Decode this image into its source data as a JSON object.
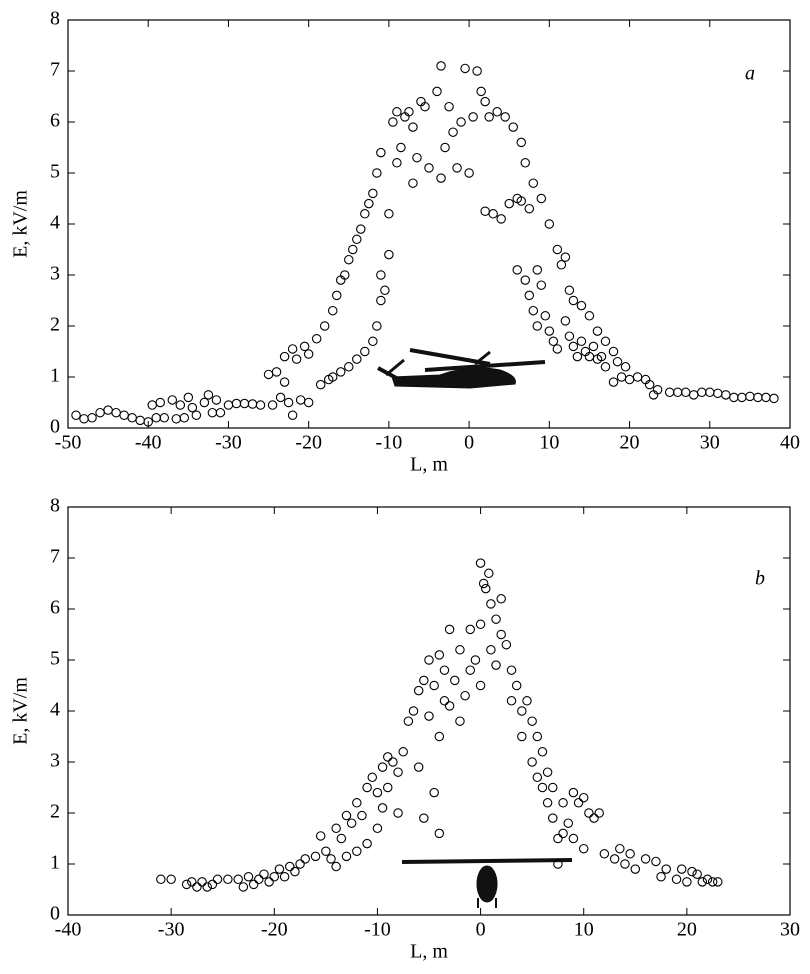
{
  "chart_data": [
    {
      "type": "scatter",
      "annotation": "a",
      "xlabel": "L, m",
      "ylabel": "E, kV/m",
      "color": "#000000",
      "xlim": [
        -50,
        40
      ],
      "ylim": [
        0,
        8
      ],
      "xticks": [
        -50,
        -40,
        -30,
        -20,
        -10,
        0,
        10,
        20,
        30,
        40
      ],
      "yticks": [
        0,
        1,
        2,
        3,
        4,
        5,
        6,
        7,
        8
      ],
      "x": [
        -49,
        -48,
        -47,
        -46,
        -45,
        -44,
        -43,
        -42,
        -41,
        -40,
        -39.5,
        -39,
        -38.5,
        -38,
        -37,
        -36.5,
        -36,
        -35.5,
        -35,
        -34.5,
        -34,
        -33,
        -32.5,
        -32,
        -31.5,
        -31,
        -30,
        -29,
        -28,
        -27,
        -26,
        -25,
        -24.5,
        -24,
        -23.5,
        -23,
        -23,
        -22.5,
        -22,
        -22,
        -21.5,
        -21,
        -20.5,
        -20,
        -20,
        -19,
        -18.5,
        -18,
        -17.5,
        -17,
        -17,
        -16.5,
        -16,
        -16,
        -15.5,
        -15,
        -15,
        -14.5,
        -14,
        -14,
        -13.5,
        -13,
        -13,
        -12.5,
        -12,
        -12,
        -11.5,
        -11.5,
        -11,
        -11,
        -11,
        -10.5,
        -10,
        -10,
        -9.5,
        -9,
        -9,
        -8.5,
        -8,
        -7.5,
        -7,
        -7,
        -6.5,
        -6,
        -5.5,
        -5,
        -4,
        -3.5,
        -3.5,
        -3,
        -2.5,
        -2,
        -1.5,
        -1,
        -0.5,
        0,
        0.5,
        1,
        1.5,
        2,
        2,
        2.5,
        3,
        3.5,
        4,
        4.5,
        5,
        5.5,
        6,
        6,
        6.5,
        6.5,
        7,
        7,
        7.5,
        7.5,
        8,
        8,
        8.5,
        8.5,
        9,
        9,
        9.5,
        10,
        10,
        10.5,
        11,
        11,
        11.5,
        12,
        12,
        12.5,
        12.5,
        13,
        13,
        13.5,
        14,
        14,
        14.5,
        15,
        15,
        15.5,
        16,
        16,
        16.5,
        17,
        17,
        18,
        18,
        18.5,
        19,
        19.5,
        20,
        21,
        22,
        22.5,
        23,
        23.5,
        25,
        26,
        27,
        28,
        29,
        30,
        31,
        32,
        33,
        34,
        35,
        36,
        37,
        38
      ],
      "values": [
        0.25,
        0.18,
        0.2,
        0.3,
        0.35,
        0.3,
        0.25,
        0.2,
        0.15,
        0.12,
        0.45,
        0.2,
        0.5,
        0.2,
        0.55,
        0.18,
        0.45,
        0.2,
        0.6,
        0.4,
        0.25,
        0.5,
        0.65,
        0.3,
        0.55,
        0.3,
        0.45,
        0.48,
        0.48,
        0.47,
        0.45,
        1.05,
        0.45,
        1.1,
        0.6,
        1.4,
        0.9,
        0.5,
        0.25,
        1.55,
        1.35,
        0.55,
        1.6,
        1.45,
        0.5,
        1.75,
        0.85,
        2.0,
        0.95,
        2.3,
        1.0,
        2.6,
        1.1,
        2.9,
        3.0,
        3.3,
        1.2,
        3.5,
        3.7,
        1.35,
        3.9,
        4.2,
        1.5,
        4.4,
        4.6,
        1.7,
        5.0,
        2.0,
        5.4,
        2.5,
        3.0,
        2.7,
        3.4,
        4.2,
        6.0,
        5.2,
        6.2,
        5.5,
        6.1,
        6.2,
        5.9,
        4.8,
        5.3,
        6.4,
        6.3,
        5.1,
        6.6,
        7.1,
        4.9,
        5.5,
        6.3,
        5.8,
        5.1,
        6.0,
        7.05,
        5.0,
        6.1,
        7.0,
        6.6,
        6.4,
        4.25,
        6.1,
        4.2,
        6.2,
        4.1,
        6.1,
        4.4,
        5.9,
        4.5,
        3.1,
        4.45,
        5.6,
        2.9,
        5.2,
        2.6,
        4.3,
        2.3,
        4.8,
        2.0,
        3.1,
        2.8,
        4.5,
        2.2,
        4.0,
        1.9,
        1.7,
        3.5,
        1.55,
        3.2,
        2.1,
        3.35,
        1.8,
        2.7,
        1.6,
        2.5,
        1.4,
        2.4,
        1.7,
        1.5,
        2.2,
        1.4,
        1.6,
        1.9,
        1.35,
        1.4,
        1.7,
        1.2,
        1.5,
        0.9,
        1.3,
        1.0,
        1.2,
        0.95,
        1.0,
        0.95,
        0.85,
        0.65,
        0.75,
        0.7,
        0.7,
        0.7,
        0.65,
        0.7,
        0.7,
        0.68,
        0.65,
        0.6,
        0.6,
        0.62,
        0.6,
        0.6,
        0.58
      ]
    },
    {
      "type": "scatter",
      "annotation": "b",
      "xlabel": "L, m",
      "ylabel": "E, kV/m",
      "color": "#000000",
      "xlim": [
        -40,
        30
      ],
      "ylim": [
        0,
        8
      ],
      "xticks": [
        -40,
        -30,
        -20,
        -10,
        0,
        10,
        20,
        30
      ],
      "yticks": [
        0,
        1,
        2,
        3,
        4,
        5,
        6,
        7,
        8
      ],
      "x": [
        -31,
        -30,
        -28.5,
        -28,
        -27.5,
        -27,
        -26.5,
        -26,
        -25.5,
        -24.5,
        -23.5,
        -23,
        -22.5,
        -22,
        -21.5,
        -21,
        -20.5,
        -20,
        -19.5,
        -19,
        -18.5,
        -18,
        -17.5,
        -17,
        -16,
        -15.5,
        -15,
        -14.5,
        -14,
        -14,
        -13.5,
        -13,
        -13,
        -12.5,
        -12,
        -12,
        -11.5,
        -11,
        -11,
        -10.5,
        -10,
        -10,
        -9.5,
        -9.5,
        -9,
        -9,
        -8.5,
        -8,
        -8,
        -7.5,
        -7,
        -6.5,
        -6,
        -6,
        -5.5,
        -5.5,
        -5,
        -5,
        -4.5,
        -4.5,
        -4,
        -4,
        -4,
        -3.5,
        -3.5,
        -3,
        -3,
        -2.5,
        -2,
        -2,
        -1.5,
        -1,
        -1,
        -0.5,
        0,
        0,
        0,
        0.3,
        0.5,
        0.8,
        1,
        1,
        1.5,
        1.5,
        2,
        2,
        2.5,
        3,
        3,
        3.5,
        4,
        4,
        4.5,
        5,
        5,
        5.5,
        5.5,
        6,
        6,
        6.5,
        6.5,
        7,
        7,
        7.5,
        7.5,
        8,
        8,
        8.5,
        9,
        9,
        9.5,
        10,
        10,
        10.5,
        11,
        11.5,
        12,
        13,
        13.5,
        14,
        14.5,
        15,
        16,
        17,
        17.5,
        18,
        19,
        19.5,
        20,
        20.5,
        21,
        21.5,
        22,
        22.5,
        23
      ],
      "values": [
        0.7,
        0.7,
        0.6,
        0.65,
        0.55,
        0.65,
        0.55,
        0.6,
        0.7,
        0.7,
        0.7,
        0.55,
        0.75,
        0.6,
        0.7,
        0.8,
        0.65,
        0.75,
        0.9,
        0.75,
        0.95,
        0.85,
        1.0,
        1.1,
        1.15,
        1.55,
        1.25,
        1.1,
        1.7,
        0.95,
        1.5,
        1.95,
        1.15,
        1.8,
        2.2,
        1.25,
        1.95,
        2.5,
        1.4,
        2.7,
        2.4,
        1.7,
        2.9,
        2.1,
        3.1,
        2.5,
        3.0,
        2.8,
        2.0,
        3.2,
        3.8,
        4.0,
        4.4,
        2.9,
        4.6,
        1.9,
        5.0,
        3.9,
        4.5,
        2.4,
        5.1,
        3.5,
        1.6,
        4.8,
        4.2,
        5.6,
        4.1,
        4.6,
        5.2,
        3.8,
        4.3,
        5.6,
        4.8,
        5.0,
        6.9,
        5.7,
        4.5,
        6.5,
        6.4,
        6.7,
        5.2,
        6.1,
        5.8,
        4.9,
        6.2,
        5.5,
        5.3,
        4.8,
        4.2,
        4.5,
        4.0,
        3.5,
        4.2,
        3.8,
        3.0,
        3.5,
        2.7,
        3.2,
        2.5,
        2.8,
        2.2,
        2.5,
        1.9,
        1.5,
        1.0,
        2.2,
        1.6,
        1.8,
        2.4,
        1.5,
        2.2,
        2.3,
        1.3,
        2.0,
        1.9,
        2.0,
        1.2,
        1.1,
        1.3,
        1.0,
        1.2,
        0.9,
        1.1,
        1.05,
        0.75,
        0.9,
        0.7,
        0.9,
        0.65,
        0.85,
        0.8,
        0.65,
        0.7,
        0.65,
        0.65
      ]
    }
  ]
}
